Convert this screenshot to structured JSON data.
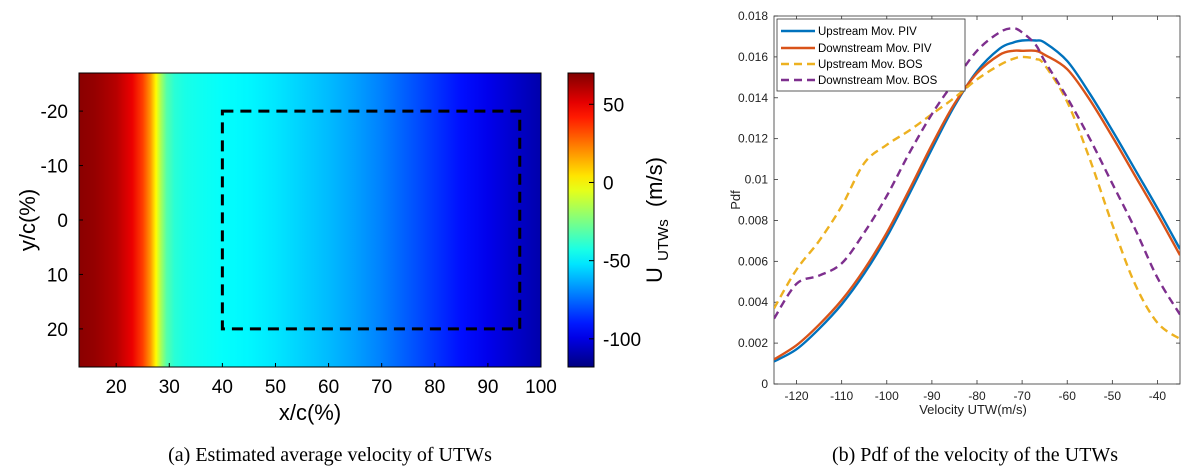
{
  "figure": {
    "panel_a_caption": "(a)  Estimated average velocity of UTWs",
    "panel_b_caption": "(b)  Pdf of the velocity of the UTWs"
  },
  "chart_data": [
    {
      "type": "heatmap",
      "xlabel": "x/c(%)",
      "ylabel": "y/c(%)",
      "colorbar_label": "U",
      "colorbar_label_subscript": "UTWs",
      "colorbar_label_unit": "(m/s)",
      "colormap": "jet",
      "xlim": [
        13,
        100
      ],
      "ylim": [
        -27,
        27
      ],
      "y_axis_reversed": true,
      "xticks": [
        20,
        30,
        40,
        50,
        60,
        70,
        80,
        90,
        100
      ],
      "yticks": [
        -20,
        -10,
        0,
        10,
        20
      ],
      "clim": [
        -118,
        70
      ],
      "colorbar_ticks": [
        50,
        0,
        -50,
        -100
      ],
      "velocity_profile": {
        "x": [
          13,
          16,
          20,
          23,
          25,
          26.5,
          27.5,
          28.5,
          29.5,
          31,
          33,
          36,
          40,
          45,
          50,
          55,
          60,
          65,
          70,
          75,
          80,
          85,
          90,
          95,
          100
        ],
        "u": [
          68,
          66,
          60,
          50,
          35,
          18,
          0,
          -18,
          -32,
          -40,
          -43,
          -45,
          -47,
          -49,
          -52,
          -56,
          -60,
          -65,
          -71,
          -78,
          -85,
          -92,
          -98,
          -104,
          -110
        ]
      },
      "dashed_rectangle": {
        "x": [
          40,
          96
        ],
        "y": [
          -20,
          20
        ],
        "color": "#000000"
      }
    },
    {
      "type": "line",
      "xlabel": "Velocity UTW(m/s)",
      "ylabel": "Pdf",
      "xlim": [
        -125,
        -35
      ],
      "ylim": [
        0,
        0.018
      ],
      "xticks": [
        -120,
        -110,
        -100,
        -90,
        -80,
        -70,
        -60,
        -50,
        -40
      ],
      "yticks": [
        0,
        0.002,
        0.004,
        0.006,
        0.008,
        0.01,
        0.012,
        0.014,
        0.016,
        0.018
      ],
      "yticklabels": [
        "0",
        "0.002",
        "0.004",
        "0.006",
        "0.008",
        "0.01",
        "0.012",
        "0.014",
        "0.016",
        "0.018"
      ],
      "legend_position": "top-left",
      "x": [
        -125,
        -120,
        -115,
        -110,
        -105,
        -100,
        -95,
        -90,
        -85,
        -80,
        -75,
        -72,
        -70,
        -67,
        -65,
        -60,
        -55,
        -50,
        -45,
        -40,
        -35
      ],
      "series": [
        {
          "name": "Upstream Mov. PIV",
          "color": "#0072BD",
          "dash": "solid",
          "values": [
            0.0011,
            0.0017,
            0.0027,
            0.0039,
            0.0054,
            0.0072,
            0.0093,
            0.0115,
            0.0136,
            0.0153,
            0.0164,
            0.0167,
            0.0168,
            0.0168,
            0.0167,
            0.0158,
            0.0142,
            0.0124,
            0.0105,
            0.0086,
            0.0066
          ]
        },
        {
          "name": "Downstream Mov. PIV",
          "color": "#D95319",
          "dash": "solid",
          "values": [
            0.0012,
            0.0019,
            0.0029,
            0.0041,
            0.0056,
            0.0074,
            0.0095,
            0.0117,
            0.0137,
            0.0152,
            0.0161,
            0.0163,
            0.0163,
            0.0163,
            0.0161,
            0.0154,
            0.0139,
            0.0121,
            0.0102,
            0.0083,
            0.0063
          ]
        },
        {
          "name": "Upstream Mov. BOS",
          "color": "#EDB120",
          "dash": "dashed",
          "values": [
            0.0037,
            0.0056,
            0.007,
            0.0087,
            0.0108,
            0.0117,
            0.0124,
            0.0132,
            0.014,
            0.0149,
            0.0156,
            0.0159,
            0.016,
            0.0159,
            0.0156,
            0.0138,
            0.011,
            0.0078,
            0.0049,
            0.003,
            0.0022
          ]
        },
        {
          "name": "Downstream Mov. BOS",
          "color": "#7E2F8E",
          "dash": "dashed",
          "values": [
            0.0032,
            0.0049,
            0.0053,
            0.0059,
            0.0074,
            0.0092,
            0.0113,
            0.0132,
            0.0148,
            0.0163,
            0.0172,
            0.0174,
            0.0172,
            0.0166,
            0.0158,
            0.014,
            0.012,
            0.0098,
            0.0076,
            0.0052,
            0.0034
          ]
        }
      ]
    }
  ]
}
